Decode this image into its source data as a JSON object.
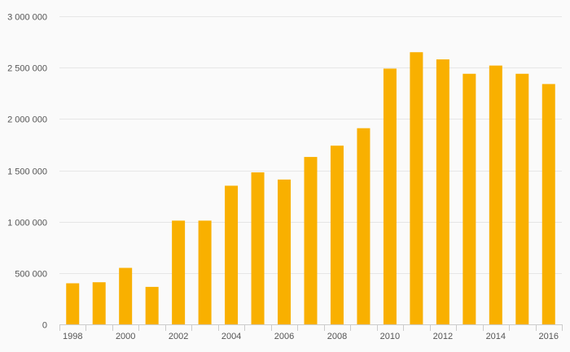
{
  "chart_data": {
    "type": "bar",
    "title": "",
    "xlabel": "",
    "ylabel": "",
    "categories": [
      "1998",
      "1999",
      "2000",
      "2001",
      "2002",
      "2003",
      "2004",
      "2005",
      "2006",
      "2007",
      "2008",
      "2009",
      "2010",
      "2011",
      "2012",
      "2013",
      "2014",
      "2015",
      "2016"
    ],
    "x_tick_labels": [
      "1998",
      "2000",
      "2002",
      "2004",
      "2006",
      "2008",
      "2010",
      "2012",
      "2014",
      "2016"
    ],
    "y_tick_labels": [
      "0",
      "500 000",
      "1 000 000",
      "1 500 000",
      "2 000 000",
      "2 500 000",
      "3 000 000"
    ],
    "y_ticks": [
      0,
      500000,
      1000000,
      1500000,
      2000000,
      2500000,
      3000000
    ],
    "values": [
      400000,
      410000,
      550000,
      365000,
      1010000,
      1010000,
      1350000,
      1480000,
      1410000,
      1630000,
      1740000,
      1910000,
      2490000,
      2650000,
      2580000,
      2440000,
      2520000,
      2440000,
      2340000
    ],
    "ylim": [
      0,
      3000000
    ],
    "grid": true,
    "bar_color": "#f9b000",
    "grid_color": "#e6e6e6",
    "axis_color": "#cccccc"
  }
}
